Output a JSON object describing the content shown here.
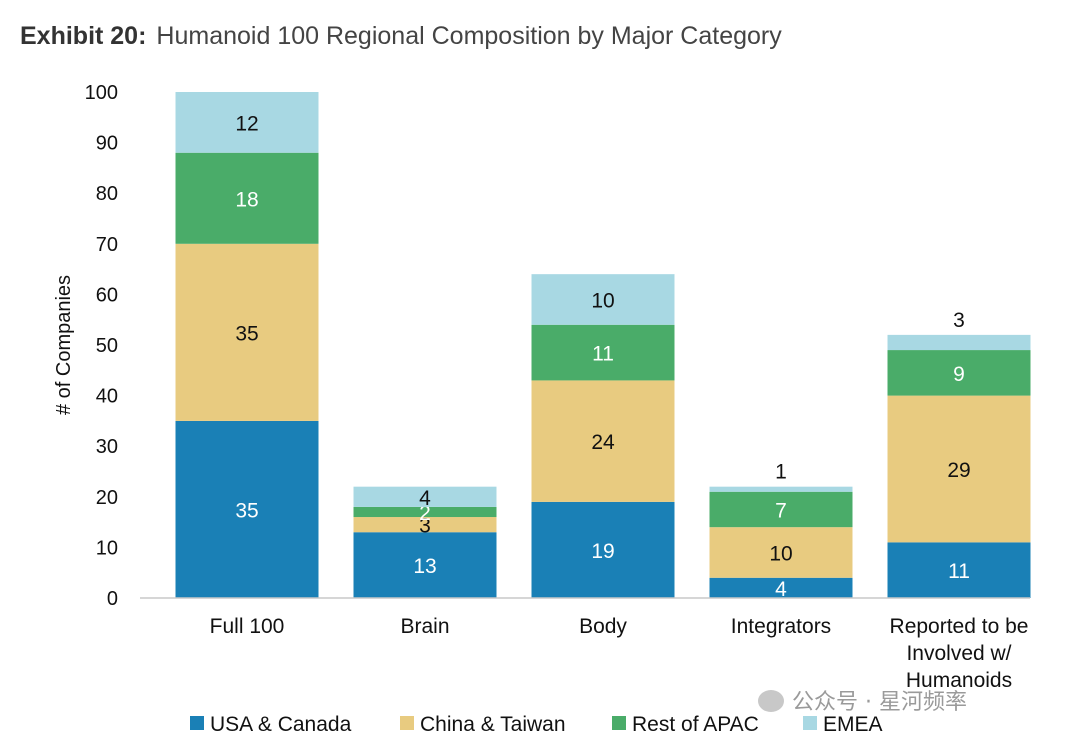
{
  "header": {
    "exhibit_label": "Exhibit 20:",
    "title": "Humanoid 100 Regional Composition by Major Category"
  },
  "watermark": {
    "text": "公众号 · 星河频率"
  },
  "chart_data": {
    "type": "bar",
    "stacked": true,
    "ylabel": "# of Companies",
    "xlabel": "",
    "ylim": [
      0,
      100
    ],
    "yticks": [
      0,
      10,
      20,
      30,
      40,
      50,
      60,
      70,
      80,
      90,
      100
    ],
    "grid": false,
    "legend_position": "bottom",
    "categories": [
      [
        "Full 100"
      ],
      [
        "Brain"
      ],
      [
        "Body"
      ],
      [
        "Integrators"
      ],
      [
        "Reported to be",
        "Involved w/",
        "Humanoids"
      ]
    ],
    "series": [
      {
        "name": "USA & Canada",
        "color": "#1a80b6",
        "label_color": "#ffffff",
        "values": [
          35,
          13,
          19,
          4,
          11
        ]
      },
      {
        "name": "China & Taiwan",
        "color": "#e8cb80",
        "label_color": "#111111",
        "values": [
          35,
          3,
          24,
          10,
          29
        ]
      },
      {
        "name": "Rest of APAC",
        "color": "#4aac69",
        "label_color": "#ffffff",
        "values": [
          18,
          2,
          11,
          7,
          9
        ]
      },
      {
        "name": "EMEA",
        "color": "#a8d8e3",
        "label_color": "#111111",
        "values": [
          12,
          4,
          10,
          1,
          3
        ]
      }
    ],
    "data_labels": [
      [
        "35",
        "35",
        "18",
        "12"
      ],
      [
        "13",
        "3",
        "2",
        "4"
      ],
      [
        "19",
        "24",
        "11",
        "10"
      ],
      [
        "4",
        "10",
        "7",
        "1"
      ],
      [
        "11",
        "29",
        "9",
        "3"
      ]
    ]
  }
}
